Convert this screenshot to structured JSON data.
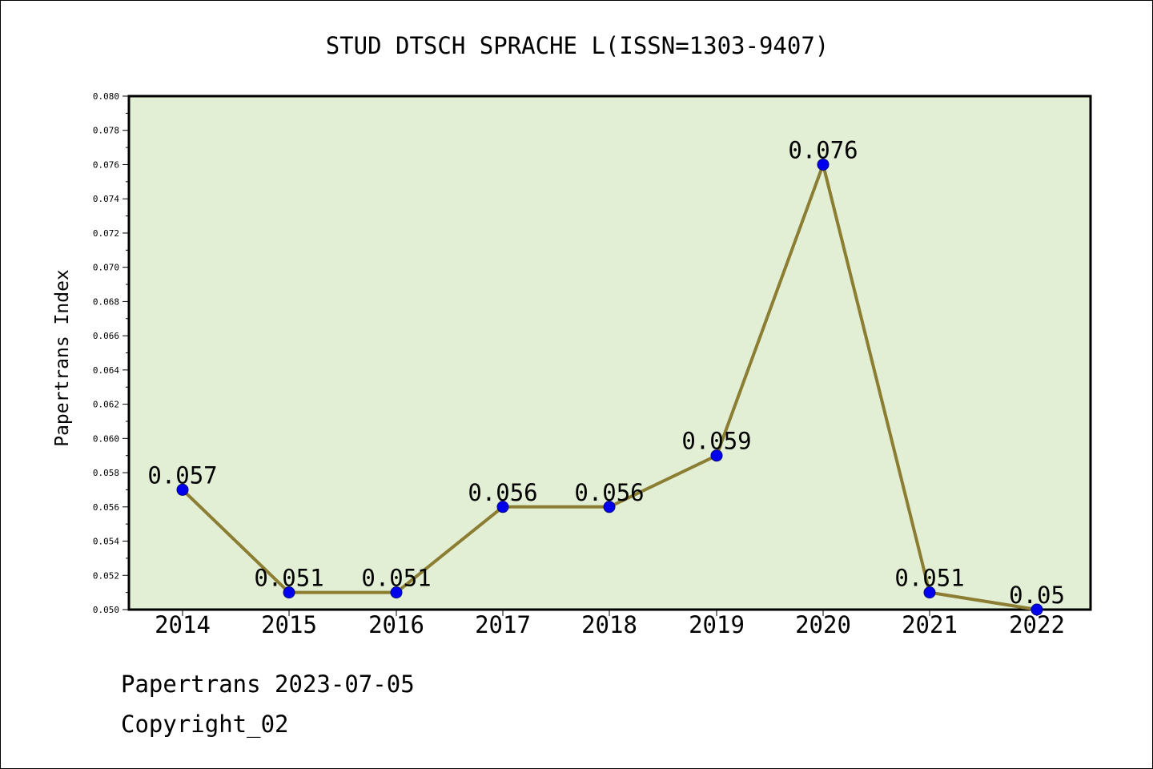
{
  "chart_data": {
    "type": "line",
    "title": "STUD DTSCH SPRACHE L(ISSN=1303-9407)",
    "xlabel": "",
    "ylabel": "Papertrans Index",
    "categories": [
      "2014",
      "2015",
      "2016",
      "2017",
      "2018",
      "2019",
      "2020",
      "2021",
      "2022"
    ],
    "series": [
      {
        "values": [
          0.057,
          0.051,
          0.051,
          0.056,
          0.056,
          0.059,
          0.076,
          0.051,
          0.05
        ],
        "labels": [
          "0.057",
          "0.051",
          "0.051",
          "0.056",
          "0.056",
          "0.059",
          "0.076",
          "0.051",
          "0.05"
        ]
      }
    ],
    "ylim": [
      0.05,
      0.08
    ],
    "yticks": [
      "0.050",
      "0.052",
      "0.054",
      "0.056",
      "0.058",
      "0.060",
      "0.062",
      "0.064",
      "0.066",
      "0.068",
      "0.070",
      "0.072",
      "0.074",
      "0.076",
      "0.078",
      "0.080"
    ],
    "grid": false,
    "legend": "none",
    "colors": {
      "plot_background": "#e2efd5",
      "line": "#8b7d32",
      "marker": "#0000ee",
      "marker_edge": "#000080"
    }
  },
  "footer": {
    "line1": "Papertrans 2023-07-05",
    "line2": "Copyright_02"
  }
}
